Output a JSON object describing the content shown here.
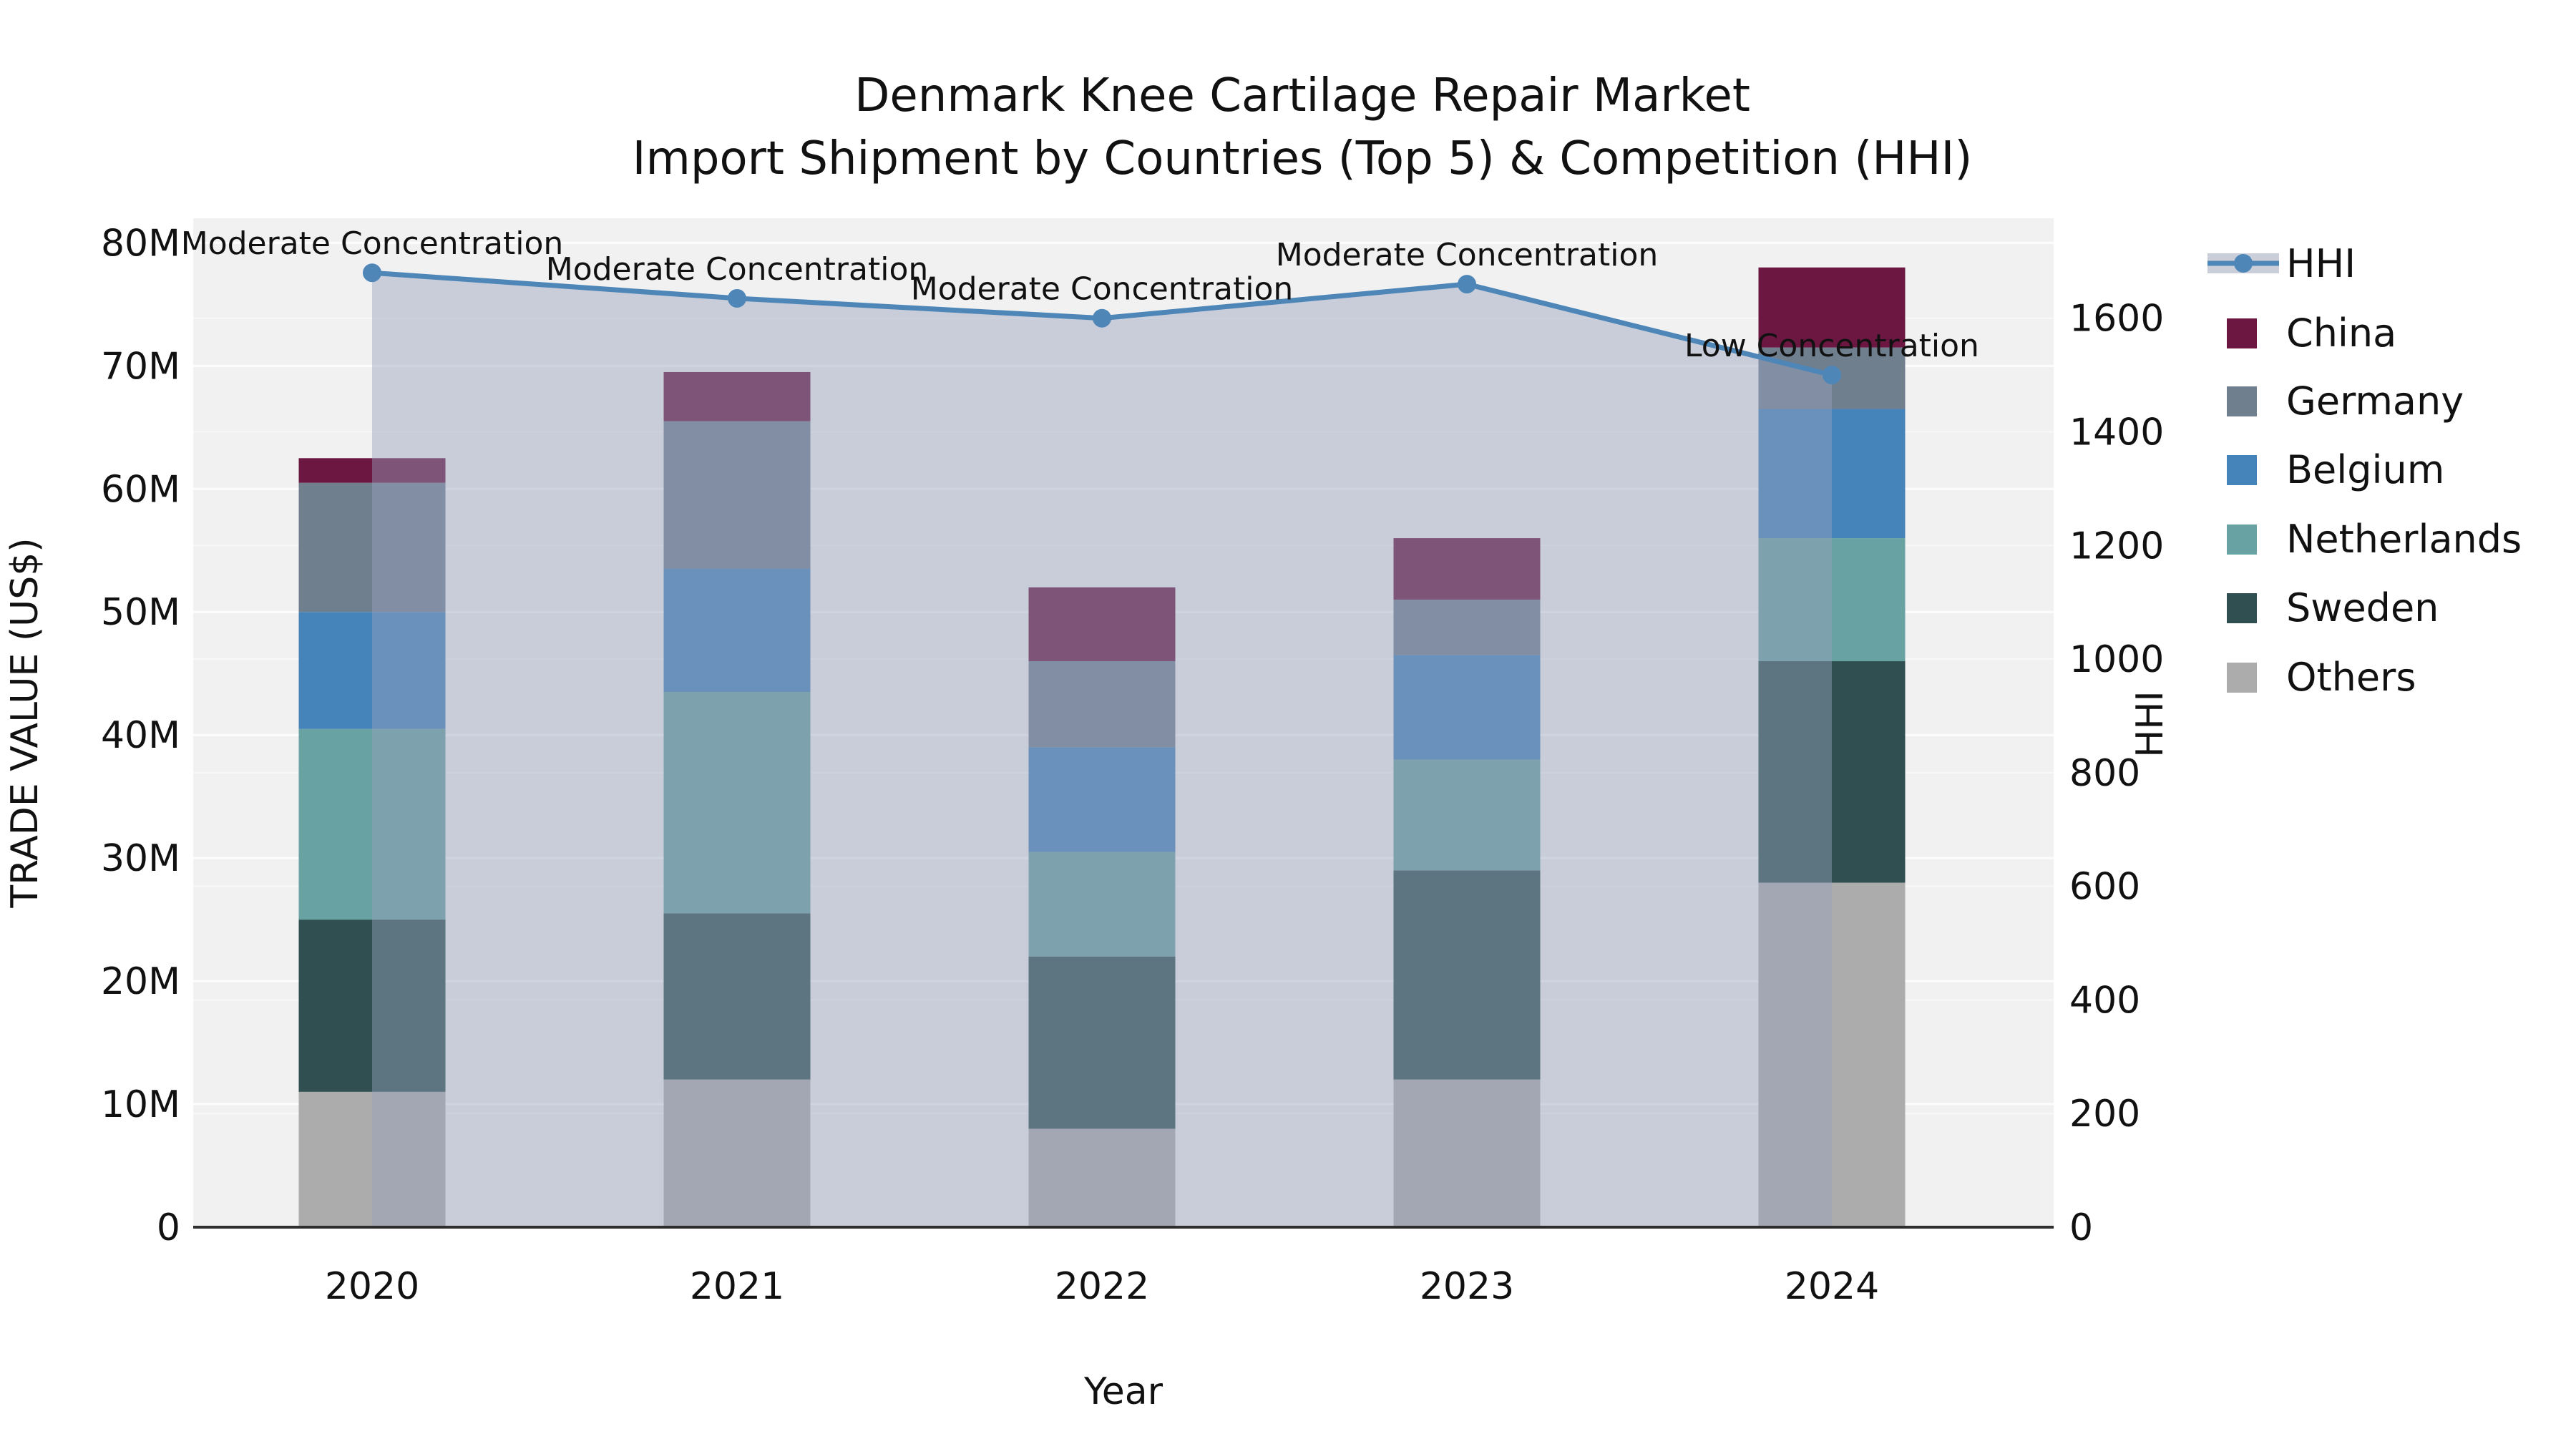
{
  "title": {
    "line1": "Denmark Knee Cartilage Repair Market",
    "line2": "Import Shipment by Countries (Top 5) & Competition (HHI)"
  },
  "axes": {
    "x": {
      "label": "Year",
      "ticks": [
        "2020",
        "2021",
        "2022",
        "2023",
        "2024"
      ]
    },
    "y_left": {
      "label": "TRADE VALUE (US$)",
      "ticks": [
        {
          "value": 0,
          "label": "0"
        },
        {
          "value": 10,
          "label": "10M"
        },
        {
          "value": 20,
          "label": "20M"
        },
        {
          "value": 30,
          "label": "30M"
        },
        {
          "value": 40,
          "label": "40M"
        },
        {
          "value": 50,
          "label": "50M"
        },
        {
          "value": 60,
          "label": "60M"
        },
        {
          "value": 70,
          "label": "70M"
        },
        {
          "value": 80,
          "label": "80M"
        }
      ],
      "range": [
        0,
        82
      ]
    },
    "y_right": {
      "label": "HHI",
      "ticks": [
        {
          "value": 0,
          "label": "0"
        },
        {
          "value": 200,
          "label": "200"
        },
        {
          "value": 400,
          "label": "400"
        },
        {
          "value": 600,
          "label": "600"
        },
        {
          "value": 800,
          "label": "800"
        },
        {
          "value": 1000,
          "label": "1000"
        },
        {
          "value": 1200,
          "label": "1200"
        },
        {
          "value": 1400,
          "label": "1400"
        },
        {
          "value": 1600,
          "label": "1600"
        }
      ],
      "range": [
        0,
        1776
      ]
    }
  },
  "legend": {
    "items": [
      {
        "label": "HHI",
        "type": "line",
        "color": "#4E86B8"
      },
      {
        "label": "China",
        "type": "swatch",
        "color": "#6B1742"
      },
      {
        "label": "Germany",
        "type": "swatch",
        "color": "#6F7F8E"
      },
      {
        "label": "Belgium",
        "type": "swatch",
        "color": "#4583BB"
      },
      {
        "label": "Netherlands",
        "type": "swatch",
        "color": "#68A2A2"
      },
      {
        "label": "Sweden",
        "type": "swatch",
        "color": "#2F4F50"
      },
      {
        "label": "Others",
        "type": "swatch",
        "color": "#ACACAC"
      }
    ]
  },
  "colors": {
    "plot_bg": "#F1F1F1",
    "grid_major": "#FFFFFF",
    "grid_minor": "#FFFFFF",
    "axis_line": "#2E2E2E",
    "hhi_line": "#4E86B8",
    "area_fill": "rgba(150,162,188,0.45)",
    "legend_band": "#C9CED9",
    "text": "#111111"
  },
  "chart_data": {
    "type": "bar",
    "stacked": true,
    "unit": "USD millions",
    "title": "Denmark Knee Cartilage Repair Market — Import Shipment by Countries (Top 5) & Competition (HHI)",
    "categories": [
      "2020",
      "2021",
      "2022",
      "2023",
      "2024"
    ],
    "series": [
      {
        "name": "Others",
        "color": "#ACACAC",
        "values": [
          11,
          12,
          8,
          12,
          28
        ]
      },
      {
        "name": "Sweden",
        "color": "#2F4F50",
        "values": [
          14,
          13.5,
          14,
          17,
          18
        ]
      },
      {
        "name": "Netherlands",
        "color": "#68A2A2",
        "values": [
          15.5,
          18,
          8.5,
          9,
          10
        ]
      },
      {
        "name": "Belgium",
        "color": "#4583BB",
        "values": [
          9.5,
          10,
          8.5,
          8.5,
          10.5
        ]
      },
      {
        "name": "Germany",
        "color": "#6F7F8E",
        "values": [
          10.5,
          12,
          7,
          4.5,
          5
        ]
      },
      {
        "name": "China",
        "color": "#6B1742",
        "values": [
          2,
          4,
          6,
          5,
          6.5
        ]
      }
    ],
    "totals": [
      62.5,
      69.5,
      52,
      56,
      78
    ],
    "line_series": {
      "name": "HHI",
      "axis": "right",
      "area_fill": true,
      "values": [
        1680,
        1635,
        1600,
        1660,
        1500
      ]
    },
    "point_annotations": [
      "Moderate Concentration",
      "Moderate Concentration",
      "Moderate Concentration",
      "Moderate Concentration",
      "Low Concentration"
    ],
    "xlabel": "Year",
    "ylabel_left": "TRADE VALUE (US$)",
    "ylabel_right": "HHI",
    "ylim_left": [
      0,
      82
    ],
    "ylim_right": [
      0,
      1776
    ],
    "grid": true,
    "legend_position": "right"
  }
}
